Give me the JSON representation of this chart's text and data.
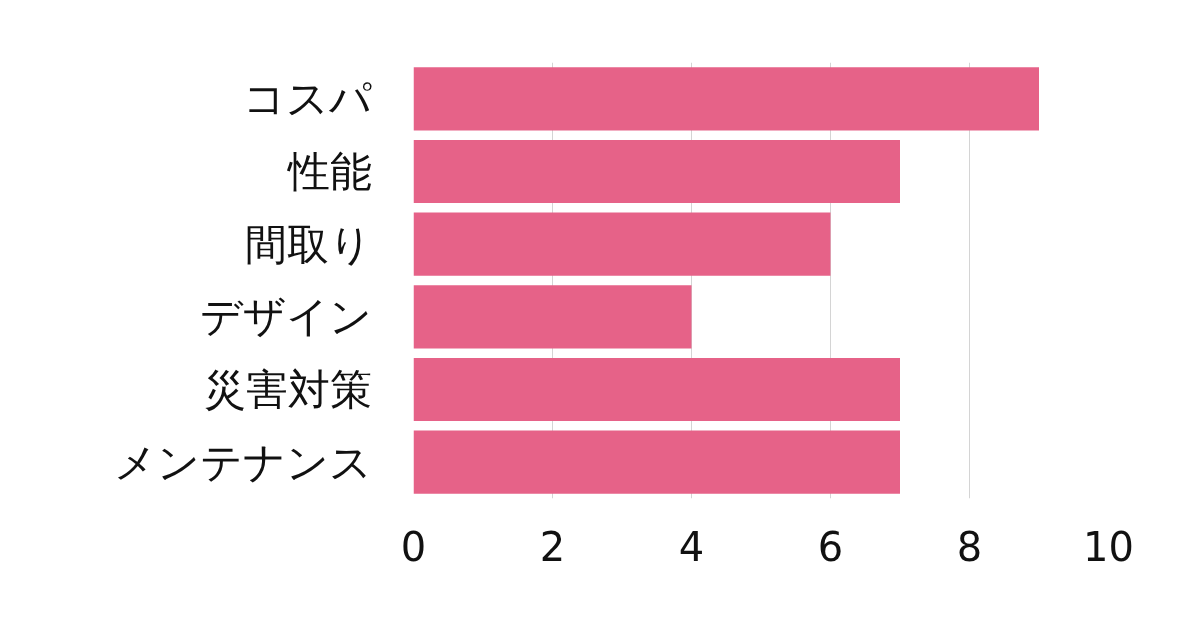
{
  "chart_data": {
    "type": "bar",
    "orientation": "horizontal",
    "categories": [
      "コスパ",
      "性能",
      "間取り",
      "デザイン",
      "災害対策",
      "メンテナンス"
    ],
    "values": [
      9,
      7,
      6,
      4,
      7,
      7
    ],
    "color": "#e66288",
    "xlim": [
      0,
      10
    ],
    "xticks": [
      0,
      2,
      4,
      6,
      8,
      10
    ],
    "grid": "x"
  }
}
